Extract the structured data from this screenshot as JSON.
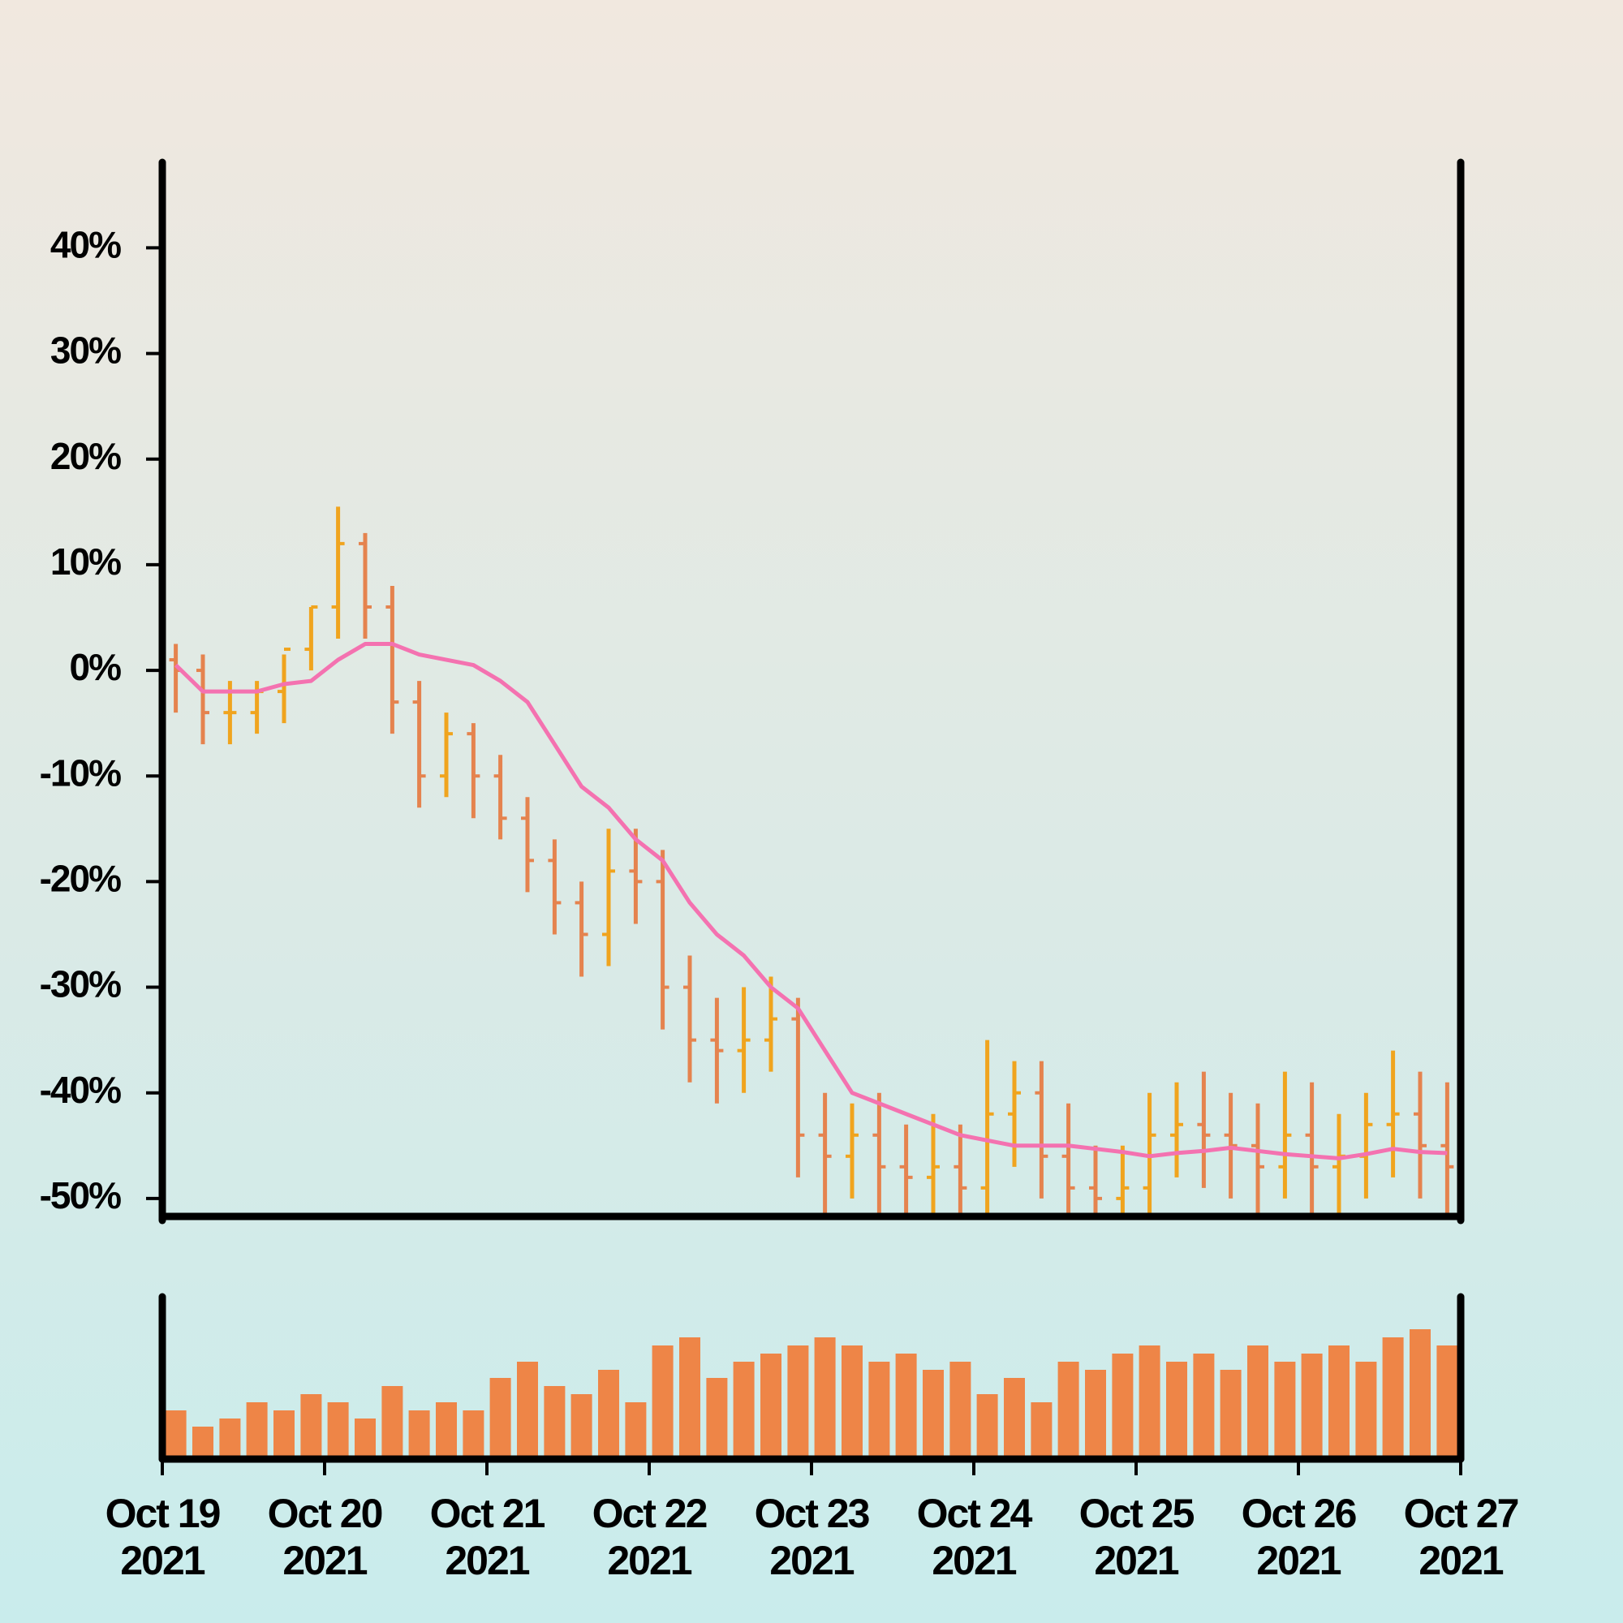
{
  "chart_data": {
    "type": "ohlc",
    "x": [
      0.083,
      0.25,
      0.417,
      0.583,
      0.75,
      0.917,
      1.083,
      1.25,
      1.417,
      1.583,
      1.75,
      1.917,
      2.083,
      2.25,
      2.417,
      2.583,
      2.75,
      2.917,
      3.083,
      3.25,
      3.417,
      3.583,
      3.75,
      3.917,
      4.083,
      4.25,
      4.417,
      4.583,
      4.75,
      4.917,
      5.083,
      5.25,
      5.417,
      5.583,
      5.75,
      5.917,
      6.083,
      6.25,
      6.417,
      6.583,
      6.75,
      6.917,
      7.083,
      7.25,
      7.417,
      7.583,
      7.75,
      7.917
    ],
    "open": [
      1,
      0,
      -4,
      -4,
      -2,
      2,
      6,
      12,
      6,
      -3,
      -10,
      -6,
      -10,
      -14,
      -18,
      -22,
      -25,
      -19,
      -20,
      -30,
      -35,
      -36,
      -35,
      -33,
      -44,
      -46,
      -44,
      -47,
      -48,
      -47,
      -49,
      -42,
      -40,
      -46,
      -49,
      -50,
      -49,
      -44,
      -43,
      -44,
      -45,
      -47,
      -44,
      -47,
      -46,
      -43,
      -42,
      -45
    ],
    "high": [
      2.5,
      1.5,
      -1,
      -1,
      1.5,
      6,
      15.5,
      13,
      8,
      -1,
      -4,
      -5,
      -8,
      -12,
      -16,
      -20,
      -15,
      -15,
      -17,
      -27,
      -31,
      -30,
      -29,
      -31,
      -40,
      -41,
      -40,
      -43,
      -42,
      -43,
      -35,
      -37,
      -37,
      -41,
      -45,
      -45,
      -40,
      -39,
      -38,
      -40,
      -41,
      -38,
      -39,
      -42,
      -40,
      -36,
      -38,
      -39
    ],
    "low": [
      -4,
      -7,
      -7,
      -6,
      -5,
      0,
      3,
      3,
      -6,
      -13,
      -12,
      -14,
      -16,
      -21,
      -25,
      -29,
      -28,
      -24,
      -34,
      -39,
      -41,
      -40,
      -38,
      -48,
      -52,
      -50,
      -52,
      -53,
      -52,
      -53,
      -52,
      -47,
      -50,
      -53,
      -54,
      -54,
      -52,
      -48,
      -49,
      -50,
      -52,
      -50,
      -52,
      -52,
      -50,
      -48,
      -50,
      -52
    ],
    "close": [
      0,
      -4,
      -4,
      -2,
      2,
      6,
      12,
      6,
      -3,
      -10,
      -6,
      -10,
      -14,
      -18,
      -22,
      -25,
      -19,
      -20,
      -30,
      -35,
      -36,
      -35,
      -33,
      -44,
      -46,
      -44,
      -47,
      -48,
      -47,
      -49,
      -42,
      -40,
      -46,
      -49,
      -50,
      -49,
      -44,
      -43,
      -44,
      -45,
      -47,
      -44,
      -47,
      -46,
      -43,
      -42,
      -45,
      -47
    ],
    "up_color": "#f0a41e",
    "down_color": "#e5834e",
    "ma": {
      "color": "#f472b0",
      "values": [
        0.5,
        -2,
        -2,
        -2,
        -1.3,
        -1,
        1,
        2.5,
        2.5,
        1.5,
        1,
        0.5,
        -1,
        -3,
        -7,
        -11,
        -13,
        -16,
        -18,
        -22,
        -25,
        -27,
        -30,
        -32,
        -36,
        -40,
        -41,
        -42,
        -43,
        -44,
        -44.5,
        -45,
        -45,
        -45,
        -45.3,
        -45.6,
        -46,
        -45.7,
        -45.5,
        -45.2,
        -45.5,
        -45.8,
        -46,
        -46.2,
        -45.8,
        -45.3,
        -45.6,
        -45.7
      ]
    },
    "volume": {
      "color": "#ee8547",
      "values": [
        30,
        20,
        25,
        35,
        30,
        40,
        35,
        25,
        45,
        30,
        35,
        30,
        50,
        60,
        45,
        40,
        55,
        35,
        70,
        75,
        50,
        60,
        65,
        70,
        75,
        70,
        60,
        65,
        55,
        60,
        40,
        50,
        35,
        60,
        55,
        65,
        70,
        60,
        65,
        55,
        70,
        60,
        65,
        70,
        60,
        75,
        80,
        70
      ]
    },
    "volume_ylim": [
      0,
      100
    ],
    "xlim": [
      0,
      8
    ],
    "xticks": [
      {
        "value": 0,
        "label": "Oct 19 2021"
      },
      {
        "value": 1,
        "label": "Oct 20 2021"
      },
      {
        "value": 2,
        "label": "Oct 21 2021"
      },
      {
        "value": 3,
        "label": "Oct 22 2021"
      },
      {
        "value": 4,
        "label": "Oct 23 2021"
      },
      {
        "value": 5,
        "label": "Oct 24 2021"
      },
      {
        "value": 6,
        "label": "Oct 25 2021"
      },
      {
        "value": 7,
        "label": "Oct 26 2021"
      },
      {
        "value": 8,
        "label": "Oct 27 2021"
      }
    ],
    "ylim": [
      -51.7,
      48.1
    ],
    "yticks": [
      {
        "value": -50,
        "label": "-50%"
      },
      {
        "value": -40,
        "label": "-40%"
      },
      {
        "value": -30,
        "label": "-30%"
      },
      {
        "value": -20,
        "label": "-20%"
      },
      {
        "value": -10,
        "label": "-10%"
      },
      {
        "value": 0,
        "label": "0%"
      },
      {
        "value": 10,
        "label": "10%"
      },
      {
        "value": 20,
        "label": "20%"
      },
      {
        "value": 30,
        "label": "30%"
      },
      {
        "value": 40,
        "label": "40%"
      }
    ]
  }
}
